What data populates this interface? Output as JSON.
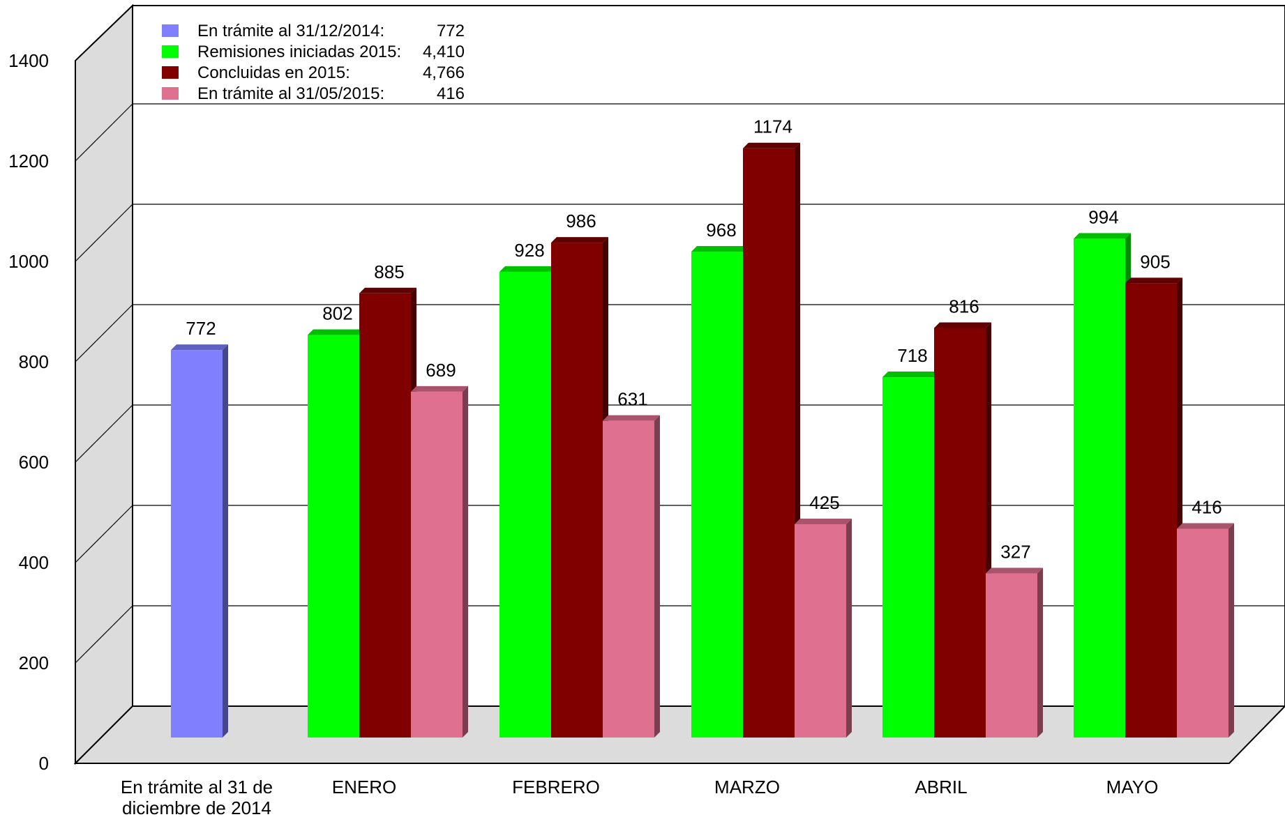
{
  "chart_data": {
    "type": "bar",
    "title": "",
    "xlabel": "",
    "ylabel": "",
    "ylim": [
      0,
      1400
    ],
    "yticks": [
      0,
      200,
      400,
      600,
      800,
      1000,
      1200,
      1400
    ],
    "grid": true,
    "legend_position": "top-left",
    "categories": [
      "En trámite al 31 de diciembre de 2014",
      "ENERO",
      "FEBRERO",
      "MARZO",
      "ABRIL",
      "MAYO"
    ],
    "category_lines": [
      [
        "En trámite al 31 de",
        "diciembre de 2014"
      ],
      [
        "ENERO"
      ],
      [
        "FEBRERO"
      ],
      [
        "MARZO"
      ],
      [
        "ABRIL"
      ],
      [
        "MAYO"
      ]
    ],
    "series": [
      {
        "name": "En trámite al 31/12/2014:",
        "total": "772",
        "color": "#8080ff",
        "values": [
          772,
          null,
          null,
          null,
          null,
          null
        ]
      },
      {
        "name": "Remisiones iniciadas 2015:",
        "total": "4,410",
        "color": "#00ff00",
        "values": [
          null,
          802,
          928,
          968,
          718,
          994
        ]
      },
      {
        "name": "Concluidas en 2015:",
        "total": "4,766",
        "color": "#800000",
        "values": [
          null,
          885,
          986,
          1174,
          816,
          905
        ]
      },
      {
        "name": "En trámite al 31/05/2015:",
        "total": "416",
        "color": "#e07090",
        "values": [
          null,
          689,
          631,
          425,
          327,
          416
        ]
      }
    ],
    "wall_color": "#dcdcdc",
    "floor_color": "#dcdcdc"
  }
}
